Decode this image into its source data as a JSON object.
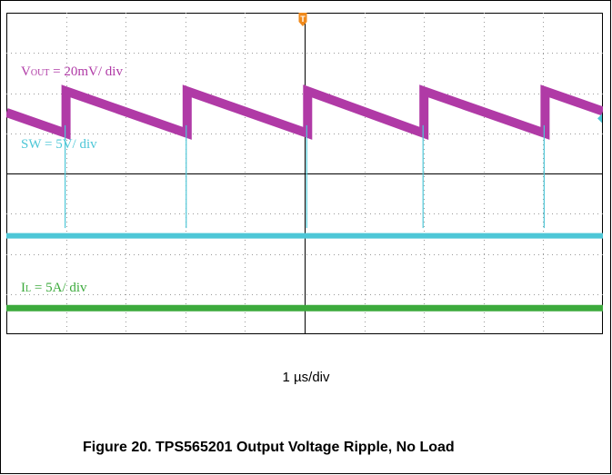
{
  "chart_data": {
    "type": "line",
    "title": "",
    "x_axis": {
      "divisions": 10,
      "scale_label": "1 µs/div"
    },
    "y_axis": {
      "divisions": 8
    },
    "grid": true,
    "series": [
      {
        "name": "VOUT",
        "label_main": "V",
        "label_sub": "OUT",
        "label_rest": " = 20mV/ div",
        "color": "#b03aa6",
        "shape": "sawtooth",
        "ripple_divisions": 1.05,
        "switching_period_divisions": 2.03,
        "step_times_divisions": [
          1.0,
          3.03,
          5.05,
          7.0,
          9.03
        ]
      },
      {
        "name": "SW",
        "label": "SW = 5V/ div",
        "color": "#4ec7d7",
        "shape": "baseline-with-spikes",
        "level_divisions_from_top": 5.55,
        "spike_times_divisions": [
          1.0,
          3.03,
          5.05,
          7.0,
          9.03
        ]
      },
      {
        "name": "IL",
        "label_main": "I",
        "label_sub": "L",
        "label_rest": " = 5A/ div",
        "color": "#3caa3c",
        "shape": "flat",
        "level_divisions_from_top": 7.35
      }
    ],
    "trigger_marker": "T",
    "trigger_color": "#f08a1c",
    "channel_marker_color": "#4ec7d7"
  },
  "timebase": "1 µs/div",
  "caption": "Figure 20. TPS565201 Output Voltage Ripple, No Load"
}
